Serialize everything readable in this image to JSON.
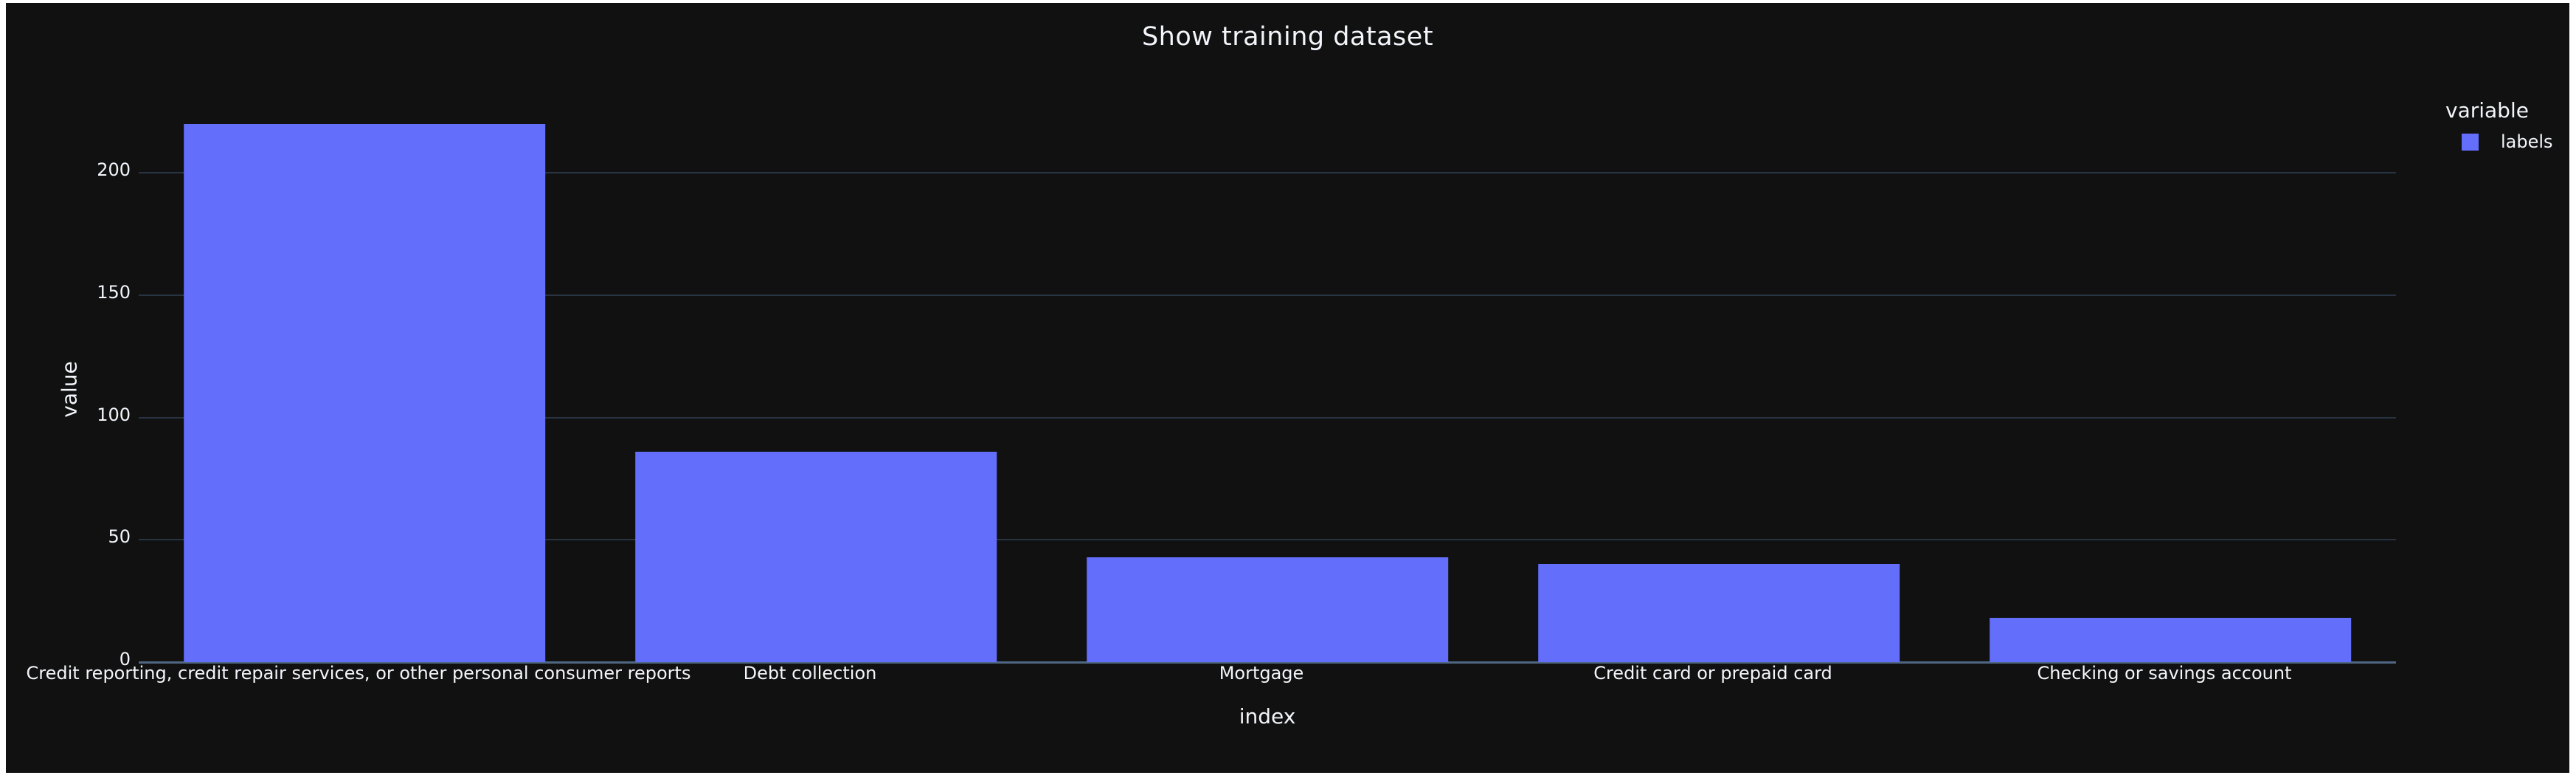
{
  "page": {
    "background": "#ffffff"
  },
  "chart": {
    "title": "Show training dataset",
    "background": "#111111",
    "text_color": "#f2f5fa",
    "grid_color": "#283442",
    "zeroline_color": "#506784",
    "legend": {
      "title": "variable",
      "items": [
        {
          "label": "labels",
          "color": "#636efa"
        }
      ]
    },
    "x_axis": {
      "title": "index"
    },
    "y_axis": {
      "title": "value",
      "tick_labels": [
        "0",
        "50",
        "100",
        "150",
        "200"
      ]
    }
  },
  "chart_data": {
    "type": "bar",
    "title": "Show training dataset",
    "categories": [
      "Credit reporting, credit repair services, or other personal consumer reports",
      "Debt collection",
      "Mortgage",
      "Credit card or prepaid card",
      "Checking or savings account"
    ],
    "series": [
      {
        "name": "labels",
        "values": [
          220,
          86,
          43,
          40,
          18
        ]
      }
    ],
    "xlabel": "index",
    "ylabel": "value",
    "ylim": [
      0,
      233
    ],
    "yticks": [
      0,
      50,
      100,
      150,
      200
    ],
    "grid": true,
    "legend_position": "right",
    "bar_color": "#636efa",
    "bar_relative_width": 0.8
  }
}
